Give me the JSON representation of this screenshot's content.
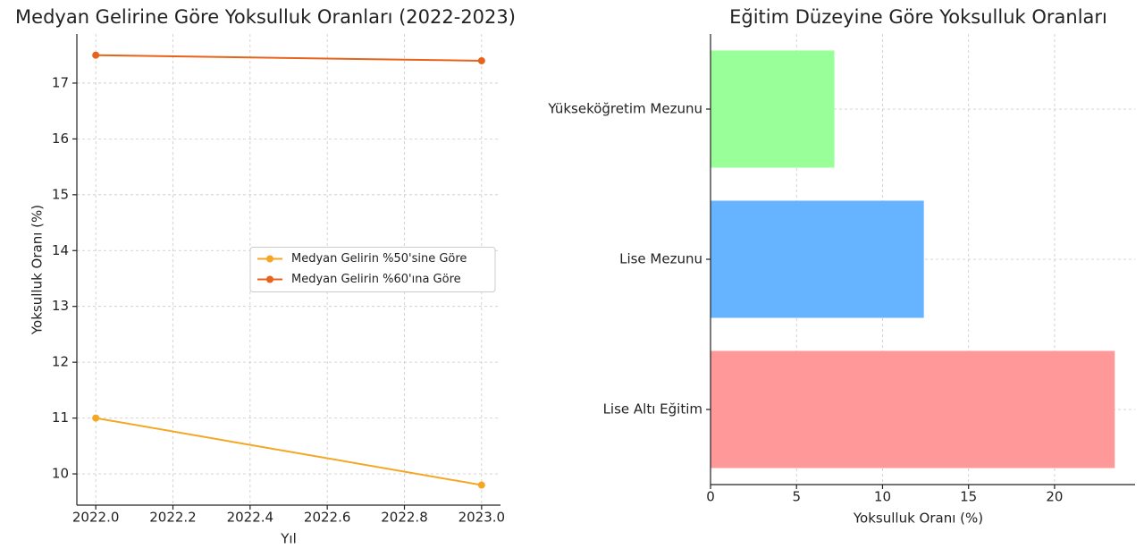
{
  "chart_data": [
    {
      "type": "line",
      "title": "Medyan Gelirine Göre Yoksulluk Oranları (2022-2023)",
      "x_label": "Yıl",
      "y_label": "Yoksulluk Oranı (%)",
      "x": [
        2022,
        2023
      ],
      "series": [
        {
          "name": "Medyan Gelirin %50'sine Göre",
          "color": "#f5a623",
          "values": [
            11.0,
            9.8
          ]
        },
        {
          "name": "Medyan Gelirin %60'ına Göre",
          "color": "#e8631a",
          "values": [
            17.5,
            17.4
          ]
        }
      ],
      "xlim": [
        2021.951,
        2023.049
      ],
      "xticks": [
        {
          "value": 2022.0,
          "label": "2022.0"
        },
        2022.2,
        2022.4,
        2022.6,
        2022.8,
        {
          "value": 2023.0,
          "label": "2023.0"
        }
      ],
      "ylim": [
        9.44,
        17.88
      ],
      "yticks": [
        10,
        11,
        12,
        13,
        14,
        15,
        16,
        17
      ],
      "grid": true,
      "legend": "center right"
    },
    {
      "type": "barh",
      "title": "Eğitim Düzeyine Göre Yoksulluk Oranları",
      "x_label": "Yoksulluk Oranı (%)",
      "categories": [
        "Yükseköğretim Mezunu",
        "Lise Mezunu",
        "Lise Altı Eğitim"
      ],
      "values": [
        7.2,
        12.4,
        23.5
      ],
      "colors": [
        "#99ff99",
        "#66b3ff",
        "#ff9999"
      ],
      "xlim": [
        0,
        24.68
      ],
      "xticks": [
        0,
        5,
        10,
        15,
        20
      ],
      "grid": true
    }
  ]
}
